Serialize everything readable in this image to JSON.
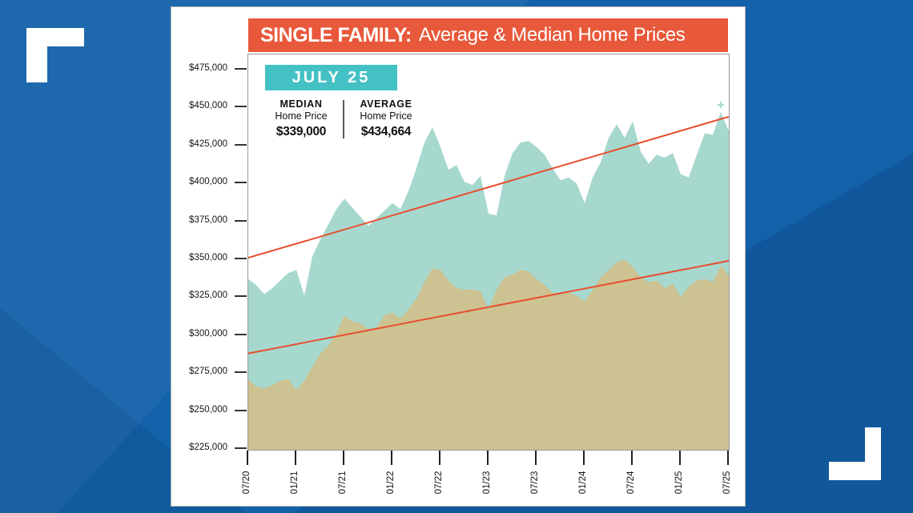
{
  "page": {
    "bg_color": "#1261a9",
    "bracket_color": "#ffffff"
  },
  "header": {
    "title_bold": "SINGLE FAMILY:",
    "title_rest": "Average & Median Home Prices",
    "bg_color": "#e8583a",
    "text_color": "#ffffff"
  },
  "badge": {
    "label": "JULY 25",
    "bg_color": "#44c1c5",
    "text_color": "#ffffff"
  },
  "legend": {
    "median": {
      "label": "MEDIAN",
      "sublabel": "Home Price",
      "value": "$339,000"
    },
    "average": {
      "label": "AVERAGE",
      "sublabel": "Home Price",
      "value": "$434,664"
    }
  },
  "chart_data": {
    "type": "area",
    "title": "SINGLE FAMILY: Average & Median Home Prices",
    "period_label": "JULY 25",
    "xlabel": "",
    "ylabel": "",
    "ylim": [
      225000,
      475000
    ],
    "y_tick_interval": 25000,
    "grid": false,
    "legend_position": "top-left",
    "y_tick_values": [
      475000,
      450000,
      425000,
      400000,
      375000,
      350000,
      325000,
      300000,
      275000,
      250000,
      225000
    ],
    "y_tick_labels": [
      "$475,000",
      "$450,000",
      "$425,000",
      "$400,000",
      "$375,000",
      "$350,000",
      "$325,000",
      "$300,000",
      "$275,000",
      "$250,000",
      "$225,000"
    ],
    "x_tick_labels": [
      "07/20",
      "01/21",
      "07/21",
      "01/22",
      "07/22",
      "01/23",
      "07/23",
      "01/24",
      "07/24",
      "01/25",
      "07/25"
    ],
    "x": [
      "07/20",
      "08/20",
      "09/20",
      "10/20",
      "11/20",
      "12/20",
      "01/21",
      "02/21",
      "03/21",
      "04/21",
      "05/21",
      "06/21",
      "07/21",
      "08/21",
      "09/21",
      "10/21",
      "11/21",
      "12/21",
      "01/22",
      "02/22",
      "03/22",
      "04/22",
      "05/22",
      "06/22",
      "07/22",
      "08/22",
      "09/22",
      "10/22",
      "11/22",
      "12/22",
      "01/23",
      "02/23",
      "03/23",
      "04/23",
      "05/23",
      "06/23",
      "07/23",
      "08/23",
      "09/23",
      "10/23",
      "11/23",
      "12/23",
      "01/24",
      "02/24",
      "03/24",
      "04/24",
      "05/24",
      "06/24",
      "07/24",
      "08/24",
      "09/24",
      "10/24",
      "11/24",
      "12/24",
      "01/25",
      "02/25",
      "03/25",
      "04/25",
      "05/25",
      "06/25",
      "07/25"
    ],
    "series": [
      {
        "name": "Average Home Price",
        "color": "#a6d8ce",
        "final_value": 434664,
        "values": [
          337000,
          333000,
          327000,
          331000,
          336000,
          341000,
          343000,
          326000,
          352000,
          363000,
          373000,
          383000,
          390000,
          384000,
          378000,
          372000,
          377000,
          382000,
          387000,
          383000,
          395000,
          410000,
          427000,
          437000,
          424000,
          409000,
          412000,
          401000,
          399000,
          405000,
          380000,
          379000,
          405000,
          420000,
          427000,
          428000,
          424000,
          419000,
          410000,
          402000,
          404000,
          400000,
          387000,
          404000,
          414000,
          430000,
          439000,
          430000,
          441000,
          421000,
          413000,
          419000,
          417000,
          420000,
          406000,
          404000,
          419000,
          433000,
          432000,
          447000,
          434664
        ]
      },
      {
        "name": "Median Home Price",
        "color": "#cdc291",
        "final_value": 339000,
        "values": [
          271000,
          266000,
          265000,
          267000,
          270000,
          271000,
          264000,
          270000,
          279000,
          288000,
          293000,
          301000,
          313000,
          309000,
          308000,
          304000,
          305000,
          313000,
          315000,
          311000,
          317000,
          324000,
          335000,
          344000,
          343000,
          336000,
          331000,
          330000,
          330000,
          329000,
          317000,
          330000,
          338000,
          340000,
          343000,
          342000,
          337000,
          333000,
          328000,
          327000,
          328000,
          326000,
          322000,
          330000,
          338000,
          343000,
          348000,
          350000,
          345000,
          338000,
          335000,
          336000,
          331000,
          334000,
          325000,
          332000,
          336000,
          337000,
          335000,
          346000,
          339000
        ]
      }
    ],
    "trendlines": [
      {
        "series": "Average Home Price",
        "color": "#e84e2f",
        "start_value": 351000,
        "end_value": 444000
      },
      {
        "series": "Median Home Price",
        "color": "#e84e2f",
        "start_value": 288000,
        "end_value": 349000
      }
    ],
    "annotations": [
      {
        "type": "plus-marker",
        "x_label": "06/25",
        "value": 447000,
        "color": "#a6d8ce"
      }
    ]
  }
}
